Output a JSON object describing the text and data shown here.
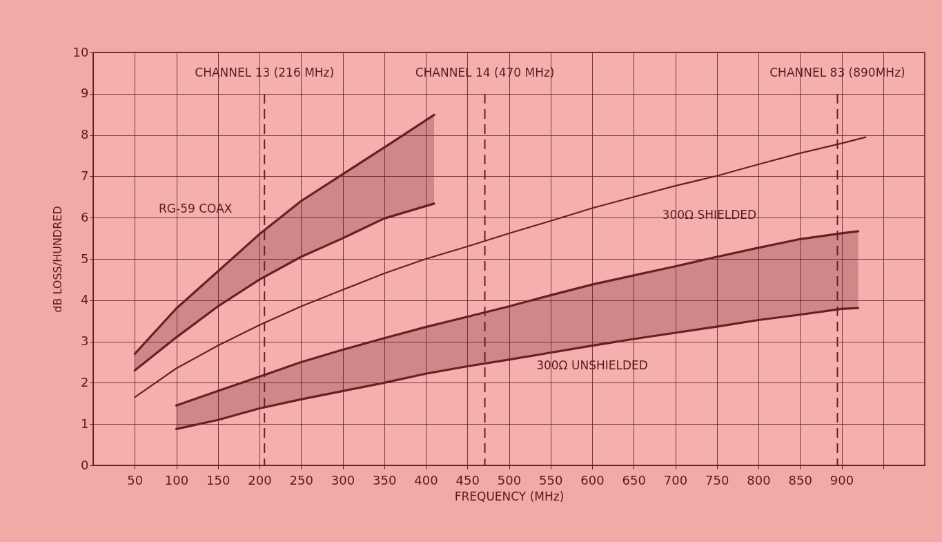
{
  "chart_data": {
    "type": "line",
    "xlabel": "FREQUENCY (MHz)",
    "ylabel": "dB LOSS/HUNDRED",
    "xlim": [
      0,
      1000
    ],
    "ylim": [
      0,
      10
    ],
    "xticks": [
      50,
      100,
      150,
      200,
      250,
      300,
      350,
      400,
      450,
      500,
      550,
      600,
      650,
      700,
      750,
      800,
      850,
      900,
      {
        "value": 950,
        "label": null
      }
    ],
    "yticks": [
      0,
      1,
      2,
      3,
      4,
      5,
      6,
      7,
      8,
      9,
      10
    ],
    "grid": true,
    "legend": false,
    "marker": "none",
    "series": [
      {
        "name": "RG-59 COAX",
        "type": "line",
        "color": "#6b1f24",
        "x": [
          50,
          100,
          150,
          200,
          250,
          300,
          350,
          410
        ],
        "values": [
          2.7,
          3.8,
          4.7,
          5.6,
          6.4,
          7.05,
          7.7,
          8.49
        ],
        "lower": [
          2.3,
          3.1,
          3.85,
          4.5,
          5.05,
          5.5,
          5.98,
          6.34
        ],
        "upper": [
          2.7,
          3.8,
          4.7,
          5.6,
          6.4,
          7.05,
          7.7,
          8.49
        ]
      },
      {
        "type": "line",
        "color": "#6b1f24",
        "x": [
          50,
          100,
          150,
          200,
          250,
          300,
          350,
          410
        ],
        "values": [
          2.3,
          3.1,
          3.85,
          4.5,
          5.05,
          5.5,
          5.98,
          6.34
        ]
      },
      {
        "name": "300Ω SHIELDED",
        "type": "line",
        "color": "#6b1f24",
        "x": [
          50,
          100,
          150,
          200,
          250,
          300,
          350,
          400,
          450,
          500,
          550,
          600,
          650,
          700,
          750,
          800,
          850,
          900,
          929
        ],
        "values": [
          1.65,
          2.35,
          2.9,
          3.4,
          3.85,
          4.25,
          4.65,
          5.0,
          5.3,
          5.62,
          5.92,
          6.23,
          6.5,
          6.77,
          7.01,
          7.29,
          7.56,
          7.8,
          7.95
        ]
      },
      {
        "name": "300Ω UNSHIELDED",
        "type": "line",
        "color": "#6b1f24",
        "x": [
          100,
          150,
          200,
          250,
          300,
          350,
          400,
          450,
          500,
          550,
          600,
          650,
          700,
          750,
          800,
          850,
          900,
          920
        ],
        "values": [
          0.88,
          1.1,
          1.38,
          1.6,
          1.8,
          2.0,
          2.22,
          2.4,
          2.56,
          2.73,
          2.9,
          3.06,
          3.21,
          3.36,
          3.52,
          3.65,
          3.79,
          3.81
        ],
        "lower": [
          0.88,
          1.1,
          1.38,
          1.6,
          1.8,
          2.0,
          2.22,
          2.4,
          2.56,
          2.73,
          2.9,
          3.06,
          3.21,
          3.36,
          3.52,
          3.65,
          3.79,
          3.81
        ],
        "upper": [
          1.45,
          1.8,
          2.15,
          2.5,
          2.8,
          3.08,
          3.35,
          3.6,
          3.85,
          4.12,
          4.38,
          4.6,
          4.82,
          5.05,
          5.27,
          5.48,
          5.62,
          5.67
        ]
      },
      {
        "type": "line",
        "color": "#6b1f24",
        "x": [
          100,
          150,
          200,
          250,
          300,
          350,
          400,
          450,
          500,
          550,
          600,
          650,
          700,
          750,
          800,
          850,
          900,
          920
        ],
        "values": [
          1.45,
          1.8,
          2.15,
          2.5,
          2.8,
          3.08,
          3.35,
          3.6,
          3.85,
          4.12,
          4.38,
          4.6,
          4.82,
          5.05,
          5.27,
          5.48,
          5.62,
          5.67
        ]
      }
    ],
    "ref_lines": [
      {
        "axis": "x",
        "value": 206,
        "label": "CHANNEL 13 (216 MHz)",
        "line_style": "dashed",
        "color": "#6b1f24"
      },
      {
        "axis": "x",
        "value": 471,
        "label": "CHANNEL 14 (470 MHz)",
        "line_style": "dashed",
        "color": "#6b1f24"
      },
      {
        "axis": "x",
        "value": 895,
        "label": "CHANNEL 83 (890MHz)",
        "line_style": "dashed",
        "color": "#6b1f24"
      }
    ]
  }
}
